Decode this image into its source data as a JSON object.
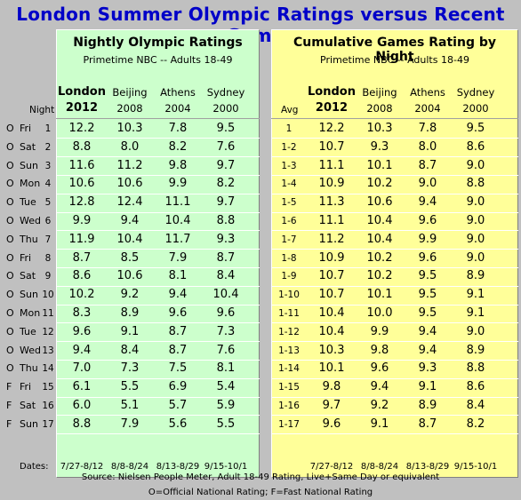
{
  "title": "London Summer Olympic Ratings versus Recent Games",
  "left": {
    "heading": "Nightly Olympic Ratings",
    "subheading": "Primetime NBC -- Adults 18-49",
    "row_header": "Night"
  },
  "right": {
    "heading": "Cumulative Games Rating by Night",
    "subheading": "Primetime NBC -- Adults 18-49",
    "row_header": "Avg"
  },
  "columns": [
    {
      "name": "London",
      "year": "2012"
    },
    {
      "name": "Beijing",
      "year": "2008"
    },
    {
      "name": "Athens",
      "year": "2004"
    },
    {
      "name": "Sydney",
      "year": "2000"
    }
  ],
  "dates_label": "Dates:",
  "dates": [
    "7/27-8/12",
    "8/8-8/24",
    "8/13-8/29",
    "9/15-10/1"
  ],
  "source": "Source: Nielsen People Meter, Adult 18-49 Rating, Live+Same Day or equivalent",
  "legend": "O=Official National Rating; F=Fast National Rating",
  "chart_data": [
    {
      "type": "table",
      "title": "Nightly Olympic Ratings",
      "subtitle": "Primetime NBC -- Adults 18-49",
      "series": [
        {
          "name": "London 2012",
          "values": [
            12.2,
            8.8,
            11.6,
            10.6,
            12.8,
            9.9,
            11.9,
            8.7,
            8.6,
            10.2,
            8.3,
            9.6,
            9.4,
            7.0,
            6.1,
            6.0,
            8.8
          ]
        },
        {
          "name": "Beijing 2008",
          "values": [
            10.3,
            8.0,
            11.2,
            10.6,
            12.4,
            9.4,
            10.4,
            8.5,
            10.6,
            9.2,
            8.9,
            9.1,
            8.4,
            7.3,
            5.5,
            5.1,
            7.9
          ]
        },
        {
          "name": "Athens 2004",
          "values": [
            7.8,
            8.2,
            9.8,
            9.9,
            11.1,
            10.4,
            11.7,
            7.9,
            8.1,
            9.4,
            9.6,
            8.7,
            8.7,
            7.5,
            6.9,
            5.7,
            5.6
          ]
        },
        {
          "name": "Sydney 2000",
          "values": [
            9.5,
            7.6,
            9.7,
            8.2,
            9.7,
            8.8,
            9.3,
            8.7,
            8.4,
            10.4,
            9.6,
            7.3,
            7.6,
            8.1,
            5.4,
            5.9,
            5.5
          ]
        }
      ],
      "rows": [
        {
          "type": "O",
          "day": "Fri",
          "night": "1"
        },
        {
          "type": "O",
          "day": "Sat",
          "night": "2"
        },
        {
          "type": "O",
          "day": "Sun",
          "night": "3"
        },
        {
          "type": "O",
          "day": "Mon",
          "night": "4"
        },
        {
          "type": "O",
          "day": "Tue",
          "night": "5"
        },
        {
          "type": "O",
          "day": "Wed",
          "night": "6"
        },
        {
          "type": "O",
          "day": "Thu",
          "night": "7"
        },
        {
          "type": "O",
          "day": "Fri",
          "night": "8"
        },
        {
          "type": "O",
          "day": "Sat",
          "night": "9"
        },
        {
          "type": "O",
          "day": "Sun",
          "night": "10"
        },
        {
          "type": "O",
          "day": "Mon",
          "night": "11"
        },
        {
          "type": "O",
          "day": "Tue",
          "night": "12"
        },
        {
          "type": "O",
          "day": "Wed",
          "night": "13"
        },
        {
          "type": "O",
          "day": "Thu",
          "night": "14"
        },
        {
          "type": "F",
          "day": "Fri",
          "night": "15"
        },
        {
          "type": "F",
          "day": "Sat",
          "night": "16"
        },
        {
          "type": "F",
          "day": "Sun",
          "night": "17"
        }
      ]
    },
    {
      "type": "table",
      "title": "Cumulative Games Rating by Night",
      "subtitle": "Primetime NBC -- Adults 18-49",
      "rows": [
        "1",
        "1-2",
        "1-3",
        "1-4",
        "1-5",
        "1-6",
        "1-7",
        "1-8",
        "1-9",
        "1-10",
        "1-11",
        "1-12",
        "1-13",
        "1-14",
        "1-15",
        "1-16",
        "1-17"
      ],
      "series": [
        {
          "name": "London 2012",
          "values": [
            12.2,
            10.7,
            11.1,
            10.9,
            11.3,
            11.1,
            11.2,
            10.9,
            10.7,
            10.7,
            10.4,
            10.4,
            10.3,
            10.1,
            9.8,
            9.7,
            9.6
          ]
        },
        {
          "name": "Beijing 2008",
          "values": [
            10.3,
            9.3,
            10.1,
            10.2,
            10.6,
            10.4,
            10.4,
            10.2,
            10.2,
            10.1,
            10.0,
            9.9,
            9.8,
            9.6,
            9.4,
            9.2,
            9.1
          ]
        },
        {
          "name": "Athens 2004",
          "values": [
            7.8,
            8.0,
            8.7,
            9.0,
            9.4,
            9.6,
            9.9,
            9.6,
            9.5,
            9.5,
            9.5,
            9.4,
            9.4,
            9.3,
            9.1,
            8.9,
            8.7
          ]
        },
        {
          "name": "Sydney 2000",
          "values": [
            9.5,
            8.6,
            9.0,
            8.8,
            9.0,
            9.0,
            9.0,
            9.0,
            8.9,
            9.1,
            9.1,
            9.0,
            8.9,
            8.8,
            8.6,
            8.4,
            8.2
          ]
        }
      ]
    }
  ]
}
